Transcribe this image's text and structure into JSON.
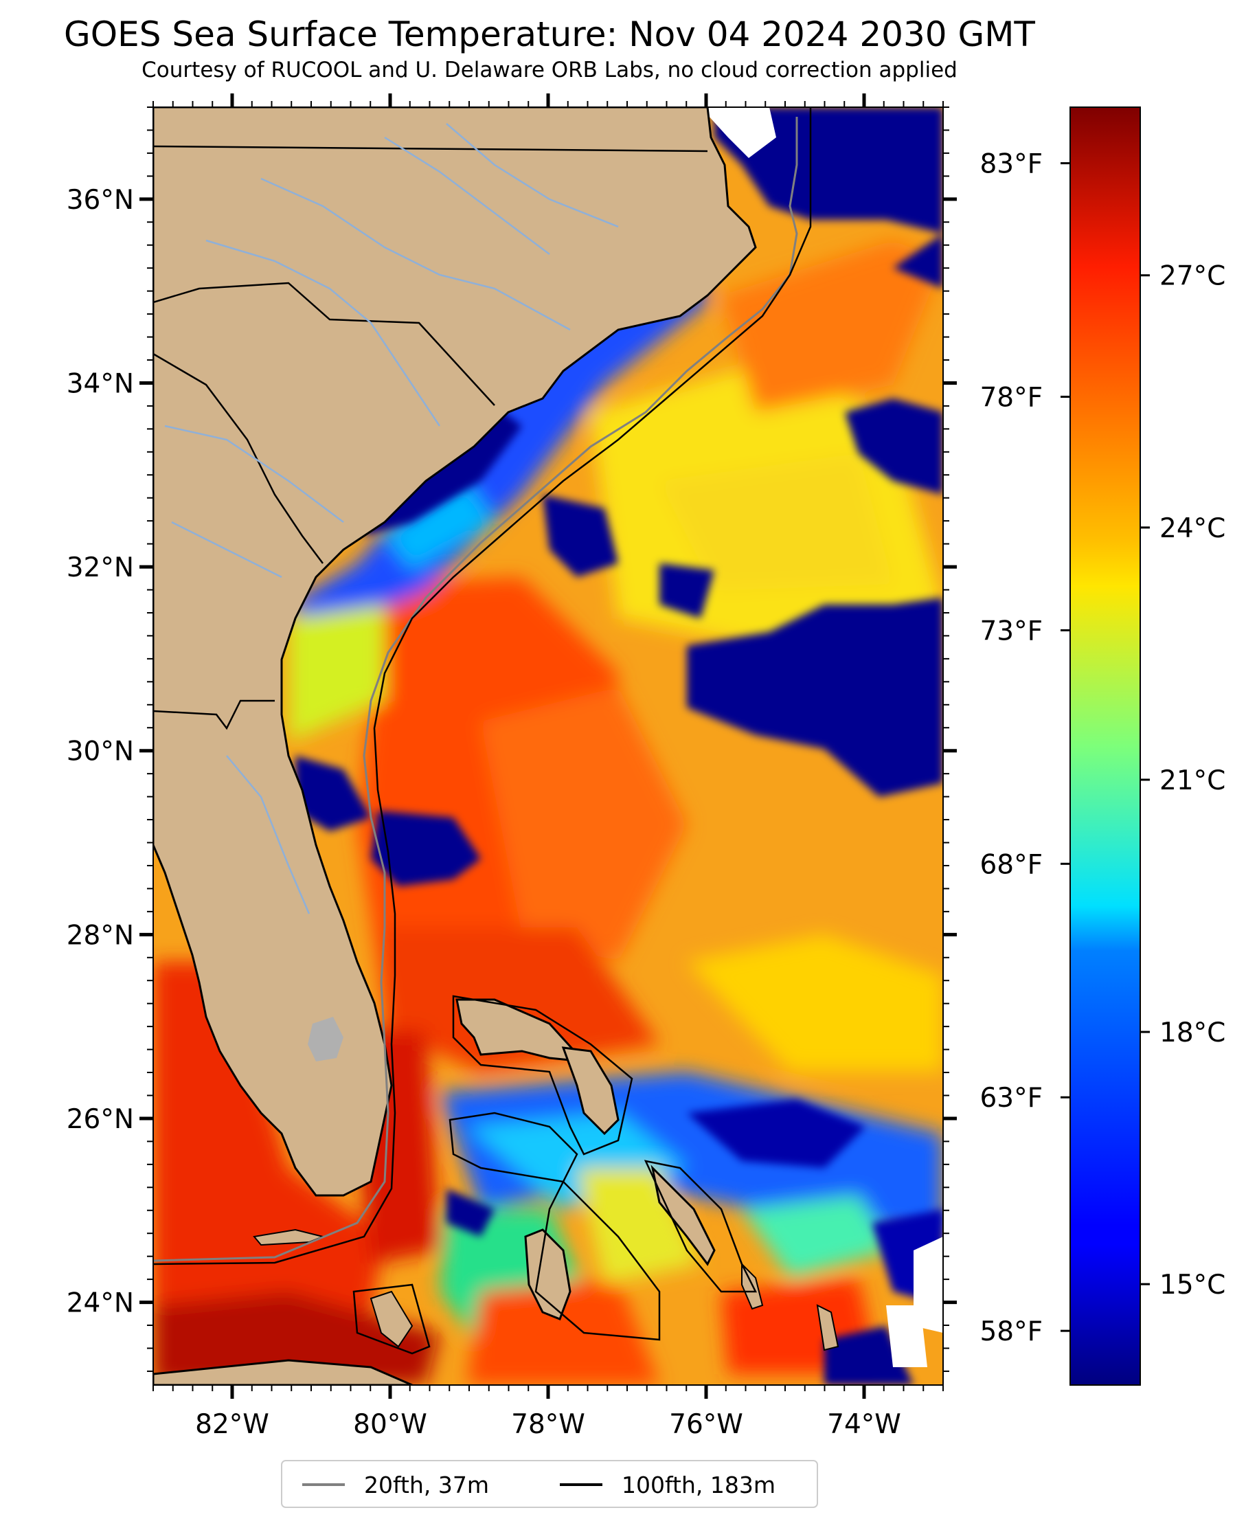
{
  "title": "GOES Sea Surface Temperature: Nov 04 2024 2030 GMT",
  "subtitle": "Courtesy of RUCOOL and U. Delaware ORB Labs, no cloud correction applied",
  "map": {
    "lon_range": [
      -83,
      -73
    ],
    "lat_range": [
      23.1,
      37.0
    ],
    "lat_ticks": [
      {
        "value": 24,
        "label": "24°N"
      },
      {
        "value": 26,
        "label": "26°N"
      },
      {
        "value": 28,
        "label": "28°N"
      },
      {
        "value": 30,
        "label": "30°N"
      },
      {
        "value": 32,
        "label": "32°N"
      },
      {
        "value": 34,
        "label": "34°N"
      },
      {
        "value": 36,
        "label": "36°N"
      }
    ],
    "lon_ticks": [
      {
        "value": -82,
        "label": "82°W"
      },
      {
        "value": -80,
        "label": "80°W"
      },
      {
        "value": -78,
        "label": "78°W"
      },
      {
        "value": -76,
        "label": "76°W"
      },
      {
        "value": -74,
        "label": "74°W"
      }
    ],
    "colors": {
      "land": "#d2b48c",
      "lake": "#b0b0b0",
      "river": "#8fb0d8",
      "cloud_cold": "#00008f",
      "isobath_20": "#808080",
      "isobath_100": "#000000"
    }
  },
  "colorbar": {
    "colormap": "jet",
    "celsius_range": [
      13.8,
      29.0
    ],
    "celsius_ticks": [
      {
        "value": 15,
        "label": "15°C"
      },
      {
        "value": 18,
        "label": "18°C"
      },
      {
        "value": 21,
        "label": "21°C"
      },
      {
        "value": 24,
        "label": "24°C"
      },
      {
        "value": 27,
        "label": "27°C"
      }
    ],
    "fahrenheit_ticks": [
      {
        "value": 58,
        "label": "58°F"
      },
      {
        "value": 63,
        "label": "63°F"
      },
      {
        "value": 68,
        "label": "68°F"
      },
      {
        "value": 73,
        "label": "73°F"
      },
      {
        "value": 78,
        "label": "78°F"
      },
      {
        "value": 83,
        "label": "83°F"
      }
    ]
  },
  "legend": {
    "items": [
      {
        "label": "20fth, 37m",
        "color": "#808080"
      },
      {
        "label": "100fth, 183m",
        "color": "#000000"
      }
    ]
  }
}
